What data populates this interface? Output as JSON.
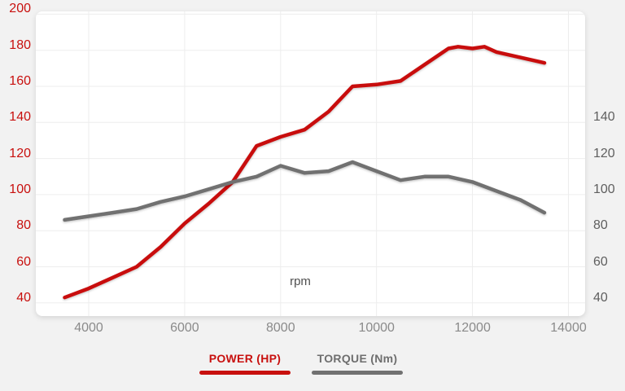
{
  "colors": {
    "background": "#f2f2f2",
    "card": "#ffffff",
    "grid": "#ededed",
    "power": "#c8100e",
    "torque": "#717171",
    "left_axis_text": "#c8100e",
    "right_axis_text": "#5f5f5f",
    "x_axis_text": "#8a8a8a"
  },
  "chart_data": {
    "type": "line",
    "x_title": "rpm",
    "x_ticks": [
      4000,
      6000,
      8000,
      10000,
      12000,
      14000
    ],
    "left_axis_ticks": [
      200,
      180,
      160,
      140,
      120,
      100,
      80,
      60,
      40
    ],
    "right_axis_ticks": [
      140,
      120,
      100,
      80,
      60,
      40
    ],
    "x_range": [
      3500,
      14000
    ],
    "y_range_left": [
      40,
      200
    ],
    "y_range_right_labeled": [
      40,
      140
    ],
    "grid": true,
    "legend_position": "bottom",
    "series": [
      {
        "name": "POWER (HP)",
        "unit": "HP",
        "color": "#c8100e",
        "points": [
          [
            3500,
            43
          ],
          [
            4000,
            48
          ],
          [
            4500,
            54
          ],
          [
            5000,
            60
          ],
          [
            5500,
            71
          ],
          [
            6000,
            84
          ],
          [
            6500,
            95
          ],
          [
            7000,
            107
          ],
          [
            7500,
            127
          ],
          [
            8000,
            132
          ],
          [
            8500,
            136
          ],
          [
            9000,
            146
          ],
          [
            9500,
            160
          ],
          [
            10000,
            161
          ],
          [
            10500,
            163
          ],
          [
            11000,
            172
          ],
          [
            11500,
            181
          ],
          [
            11700,
            182
          ],
          [
            12000,
            181
          ],
          [
            12250,
            182
          ],
          [
            12500,
            179
          ],
          [
            13000,
            176
          ],
          [
            13500,
            173
          ]
        ]
      },
      {
        "name": "TORQUE (Nm)",
        "unit": "Nm",
        "color": "#717171",
        "points": [
          [
            3500,
            86
          ],
          [
            4000,
            88
          ],
          [
            4500,
            90
          ],
          [
            5000,
            92
          ],
          [
            5500,
            96
          ],
          [
            6000,
            99
          ],
          [
            6500,
            103
          ],
          [
            7000,
            107
          ],
          [
            7500,
            110
          ],
          [
            8000,
            116
          ],
          [
            8500,
            112
          ],
          [
            9000,
            113
          ],
          [
            9500,
            118
          ],
          [
            10000,
            113
          ],
          [
            10500,
            108
          ],
          [
            11000,
            110
          ],
          [
            11500,
            110
          ],
          [
            12000,
            107
          ],
          [
            12500,
            102
          ],
          [
            13000,
            97
          ],
          [
            13500,
            90
          ]
        ]
      }
    ]
  }
}
